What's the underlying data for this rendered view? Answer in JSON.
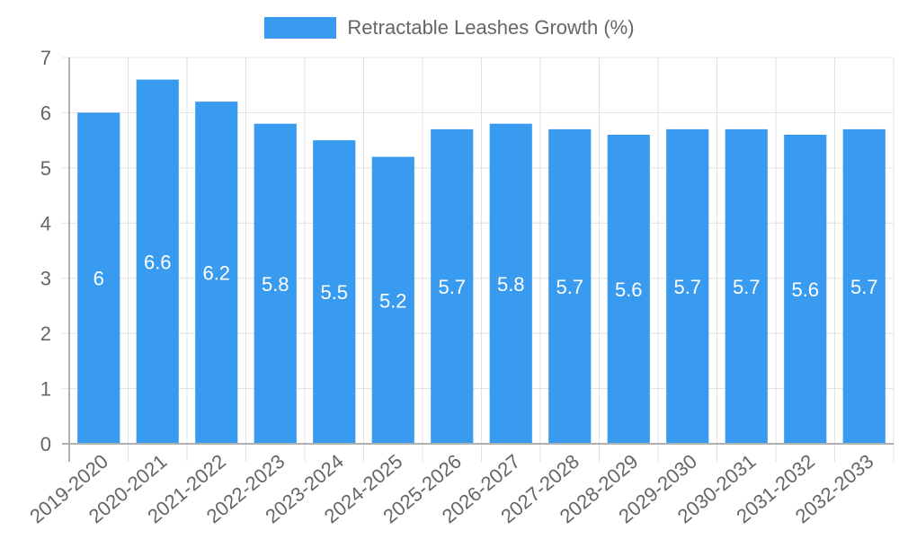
{
  "chart_data": {
    "type": "bar",
    "title": "",
    "xlabel": "",
    "ylabel": "",
    "categories": [
      "2019-2020",
      "2020-2021",
      "2021-2022",
      "2022-2023",
      "2023-2024",
      "2024-2025",
      "2025-2026",
      "2026-2027",
      "2027-2028",
      "2028-2029",
      "2029-2030",
      "2030-2031",
      "2031-2032",
      "2032-2033"
    ],
    "series": [
      {
        "name": "Retractable Leashes Growth (%)",
        "values": [
          6,
          6.6,
          6.2,
          5.8,
          5.5,
          5.2,
          5.7,
          5.8,
          5.7,
          5.6,
          5.7,
          5.7,
          5.6,
          5.7
        ],
        "color": "#389bf0"
      }
    ],
    "data_labels": [
      "6",
      "6.6",
      "6.2",
      "5.8",
      "5.5",
      "5.2",
      "5.7",
      "5.8",
      "5.7",
      "5.6",
      "5.7",
      "5.7",
      "5.6",
      "5.7"
    ],
    "ylim": [
      0,
      7
    ],
    "yticks": [
      0,
      1,
      2,
      3,
      4,
      5,
      6,
      7
    ],
    "grid": true,
    "legend_position": "top"
  },
  "legend": {
    "label": "Retractable Leashes Growth (%)",
    "color": "#389bf0"
  },
  "colors": {
    "bar": "#389bf0",
    "grid": "#e1e1e1",
    "axis": "#b0b0b0",
    "tick_text": "#666666",
    "data_label": "#ffffff"
  }
}
